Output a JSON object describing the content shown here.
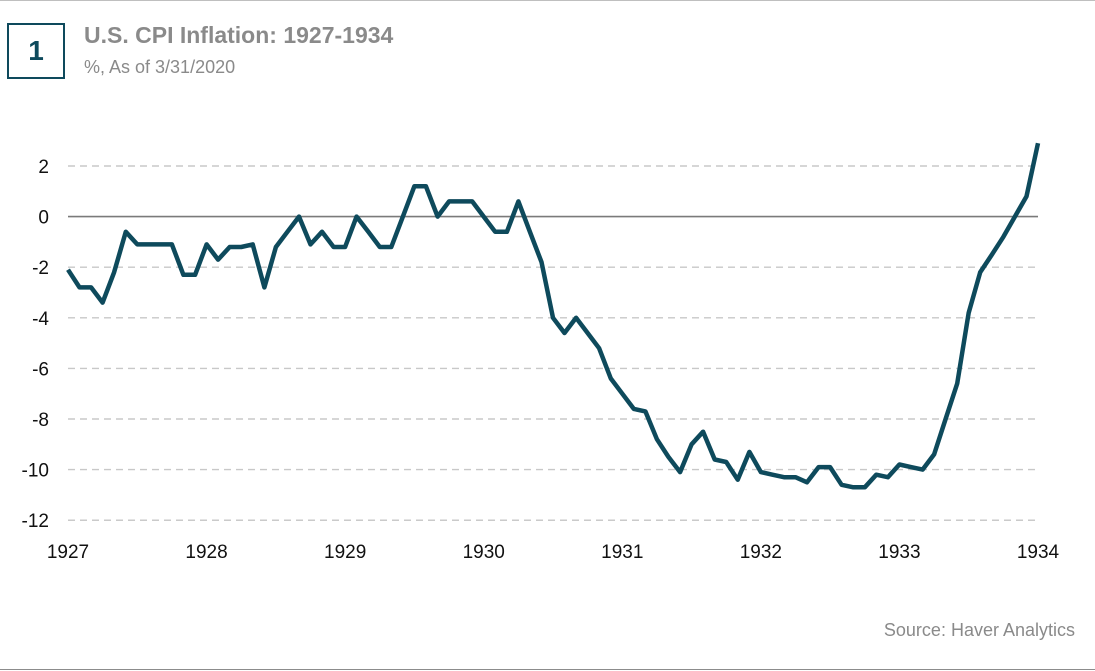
{
  "badge": "1",
  "title": "U.S. CPI Inflation: 1927-1934",
  "subtitle": "%, As of 3/31/2020",
  "source": "Source: Haver Analytics",
  "colors": {
    "line": "#0e4a5c",
    "grid": "#c8c8c8",
    "zero": "#7a7a7a",
    "text": "#8a8a8a"
  },
  "chart_data": {
    "type": "line",
    "title": "U.S. CPI Inflation: 1927-1934",
    "subtitle": "%, As of 3/31/2020",
    "xlabel": "",
    "ylabel": "",
    "xlim": [
      1927,
      1934
    ],
    "ylim": [
      -12,
      3
    ],
    "yticks": [
      2,
      0,
      -2,
      -4,
      -6,
      -8,
      -10,
      -12
    ],
    "xticks": [
      "1927",
      "1928",
      "1929",
      "1930",
      "1931",
      "1932",
      "1933",
      "1934"
    ],
    "grid": true,
    "legend": "none",
    "series": [
      {
        "x": [
          1927.0,
          1927.083,
          1927.167,
          1927.25,
          1927.333,
          1927.417,
          1927.5,
          1927.583,
          1927.667,
          1927.75,
          1927.833,
          1927.917,
          1928.0,
          1928.083,
          1928.167,
          1928.25,
          1928.333,
          1928.417,
          1928.5,
          1928.583,
          1928.667,
          1928.75,
          1928.833,
          1928.917,
          1929.0,
          1929.083,
          1929.167,
          1929.25,
          1929.333,
          1929.417,
          1929.5,
          1929.583,
          1929.667,
          1929.75,
          1929.833,
          1929.917,
          1930.0,
          1930.083,
          1930.167,
          1930.25,
          1930.333,
          1930.417,
          1930.5,
          1930.583,
          1930.667,
          1930.75,
          1930.833,
          1930.917,
          1931.0,
          1931.083,
          1931.167,
          1931.25,
          1931.333,
          1931.417,
          1931.5,
          1931.583,
          1931.667,
          1931.75,
          1931.833,
          1931.917,
          1932.0,
          1932.083,
          1932.167,
          1932.25,
          1932.333,
          1932.417,
          1932.5,
          1932.583,
          1932.667,
          1932.75,
          1932.833,
          1932.917,
          1933.0,
          1933.083,
          1933.167,
          1933.25,
          1933.333,
          1933.417,
          1933.5,
          1933.583,
          1933.667,
          1933.75,
          1933.833,
          1933.917,
          1934.0
        ],
        "values": [
          -2.1,
          -2.8,
          -2.8,
          -3.4,
          -2.2,
          -0.6,
          -1.1,
          -1.1,
          -1.1,
          -1.1,
          -2.3,
          -2.3,
          -1.1,
          -1.7,
          -1.2,
          -1.2,
          -1.1,
          -2.8,
          -1.2,
          -0.6,
          0.0,
          -1.1,
          -0.6,
          -1.2,
          -1.2,
          0.0,
          -0.6,
          -1.2,
          -1.2,
          0.0,
          1.2,
          1.2,
          0.0,
          0.6,
          0.6,
          0.6,
          0.0,
          -0.6,
          -0.6,
          0.6,
          -0.6,
          -1.8,
          -4.0,
          -4.6,
          -4.0,
          -4.6,
          -5.2,
          -6.4,
          -7.0,
          -7.6,
          -7.7,
          -8.8,
          -9.5,
          -10.1,
          -9.0,
          -8.5,
          -9.6,
          -9.7,
          -10.4,
          -9.3,
          -10.1,
          -10.2,
          -10.3,
          -10.3,
          -10.5,
          -9.9,
          -9.9,
          -10.6,
          -10.7,
          -10.7,
          -10.2,
          -10.3,
          -9.8,
          -9.9,
          -10.0,
          -9.4,
          -8.0,
          -6.6,
          -3.8,
          -2.2,
          -1.5,
          -0.8,
          0.0,
          0.8,
          2.9
        ]
      }
    ]
  }
}
